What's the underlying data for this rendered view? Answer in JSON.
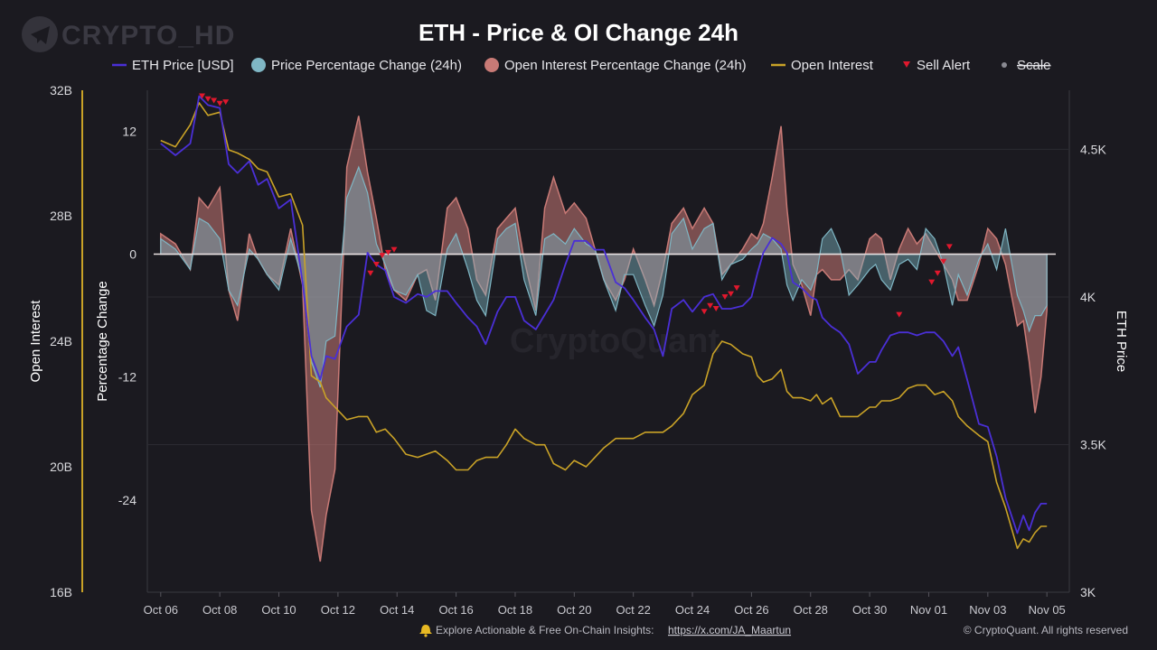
{
  "brand": {
    "watermark": "CRYPTO_HD",
    "center_watermark": "CryptoQuant",
    "copyright": "© CryptoQuant. All rights reserved"
  },
  "footer": {
    "text": "Explore Actionable & Free On-Chain Insights:",
    "link": "https://x.com/JA_Maartun",
    "bell_icon": "bell-icon"
  },
  "colors": {
    "background": "#1b1a20",
    "eth_price": "#4a2fd6",
    "price_change": "#7fb6c4",
    "oi_change": "#c97a76",
    "open_interest": "#c9a227",
    "sell_alert": "#e0182d",
    "grid": "#2b2a31"
  },
  "chart_data": {
    "type": "line",
    "title": "ETH - Price & OI Change 24h",
    "legend": [
      {
        "key": "eth_price",
        "label": "ETH Price [USD]",
        "marker": "line"
      },
      {
        "key": "price_change",
        "label": "Price Percentage Change (24h)",
        "marker": "dot"
      },
      {
        "key": "oi_change",
        "label": "Open Interest Percentage Change (24h)",
        "marker": "dot"
      },
      {
        "key": "open_interest",
        "label": "Open Interest",
        "marker": "line"
      },
      {
        "key": "sell_alert",
        "label": "Sell Alert",
        "marker": "triangle"
      },
      {
        "key": "scale",
        "label": "Scale",
        "marker": "dot",
        "disabled": true
      }
    ],
    "x_ticks": [
      "Oct 06",
      "Oct 08",
      "Oct 10",
      "Oct 12",
      "Oct 14",
      "Oct 16",
      "Oct 18",
      "Oct 20",
      "Oct 22",
      "Oct 24",
      "Oct 26",
      "Oct 28",
      "Oct 30",
      "Nov 01",
      "Nov 03",
      "Nov 05"
    ],
    "x_range_days": [
      -0.3,
      30.3
    ],
    "axes": {
      "open_interest": {
        "title": "Open Interest",
        "range": [
          16,
          32
        ],
        "ticks": [
          "16B",
          "20B",
          "24B",
          "28B",
          "32B"
        ]
      },
      "percentage": {
        "title": "Percentage Change",
        "range": [
          -33,
          16
        ],
        "ticks": [
          "12",
          "0",
          "-12",
          "-24"
        ]
      },
      "eth_price": {
        "title": "ETH Price",
        "range": [
          3000,
          4700
        ],
        "ticks": [
          "3K",
          "3.5K",
          "4K",
          "4.5K"
        ]
      }
    },
    "series": {
      "eth_price": {
        "name": "ETH Price [USD]",
        "unit": "USD",
        "x": [
          0,
          0.5,
          1,
          1.3,
          1.6,
          2,
          2.3,
          2.6,
          3,
          3.3,
          3.6,
          4,
          4.4,
          4.8,
          5.1,
          5.4,
          5.6,
          5.9,
          6.3,
          6.7,
          7,
          7.3,
          7.6,
          7.9,
          8.3,
          8.7,
          9,
          9.3,
          9.7,
          10,
          10.4,
          10.7,
          11,
          11.4,
          11.7,
          12,
          12.3,
          12.7,
          13,
          13.3,
          13.7,
          14,
          14.4,
          14.7,
          15,
          15.4,
          15.7,
          16,
          16.4,
          16.7,
          17,
          17.3,
          17.7,
          18,
          18.4,
          18.7,
          19,
          19.3,
          19.7,
          20,
          20.2,
          20.4,
          20.7,
          21,
          21.2,
          21.4,
          21.7,
          22,
          22.2,
          22.4,
          22.7,
          23,
          23.3,
          23.6,
          24,
          24.2,
          24.4,
          24.7,
          25,
          25.3,
          25.6,
          25.9,
          26.2,
          26.5,
          26.8,
          27,
          27.3,
          27.7,
          28,
          28.3,
          28.6,
          29,
          29.2,
          29.4,
          29.6,
          29.8,
          30
        ],
        "values": [
          4520,
          4480,
          4520,
          4680,
          4650,
          4640,
          4450,
          4420,
          4460,
          4380,
          4400,
          4300,
          4330,
          4050,
          3800,
          3720,
          3800,
          3790,
          3900,
          3940,
          4150,
          4110,
          4090,
          4000,
          3980,
          4010,
          4000,
          4020,
          4020,
          3980,
          3930,
          3900,
          3840,
          3950,
          4000,
          4000,
          3920,
          3890,
          3940,
          3990,
          4110,
          4190,
          4190,
          4160,
          4160,
          4050,
          4030,
          3990,
          3930,
          3890,
          3800,
          3960,
          3990,
          3950,
          4000,
          4010,
          3960,
          3960,
          3970,
          4000,
          4080,
          4150,
          4200,
          4180,
          4150,
          4050,
          4030,
          4000,
          3990,
          3930,
          3900,
          3880,
          3840,
          3740,
          3780,
          3780,
          3820,
          3870,
          3880,
          3880,
          3870,
          3880,
          3880,
          3850,
          3800,
          3830,
          3720,
          3570,
          3560,
          3460,
          3320,
          3200,
          3260,
          3210,
          3270,
          3300,
          3300
        ]
      },
      "open_interest": {
        "name": "Open Interest",
        "unit": "B USD",
        "x": [
          0,
          0.5,
          1,
          1.3,
          1.6,
          2,
          2.3,
          2.6,
          3,
          3.3,
          3.6,
          4,
          4.4,
          4.8,
          5.1,
          5.4,
          5.6,
          5.9,
          6.3,
          6.7,
          7,
          7.3,
          7.6,
          7.9,
          8.3,
          8.7,
          9,
          9.3,
          9.7,
          10,
          10.4,
          10.7,
          11,
          11.4,
          11.7,
          12,
          12.3,
          12.7,
          13,
          13.3,
          13.7,
          14,
          14.4,
          14.7,
          15,
          15.4,
          15.7,
          16,
          16.4,
          16.7,
          17,
          17.3,
          17.7,
          18,
          18.4,
          18.7,
          19,
          19.3,
          19.7,
          20,
          20.2,
          20.4,
          20.7,
          21,
          21.2,
          21.4,
          21.7,
          22,
          22.2,
          22.4,
          22.7,
          23,
          23.3,
          23.6,
          24,
          24.2,
          24.4,
          24.7,
          25,
          25.3,
          25.6,
          25.9,
          26.2,
          26.5,
          26.8,
          27,
          27.3,
          27.7,
          28,
          28.3,
          28.6,
          29,
          29.2,
          29.4,
          29.6,
          29.8,
          30
        ],
        "values": [
          30.4,
          30.2,
          30.9,
          31.6,
          31.2,
          31.3,
          30.1,
          30.0,
          29.8,
          29.5,
          29.4,
          28.6,
          28.7,
          27.7,
          22.9,
          22.7,
          22.2,
          21.9,
          21.5,
          21.6,
          21.6,
          21.1,
          21.2,
          20.9,
          20.4,
          20.3,
          20.4,
          20.5,
          20.2,
          19.9,
          19.9,
          20.2,
          20.3,
          20.3,
          20.7,
          21.2,
          20.9,
          20.7,
          20.7,
          20.1,
          19.9,
          20.2,
          20.0,
          20.3,
          20.6,
          20.9,
          20.9,
          20.9,
          21.1,
          21.1,
          21.1,
          21.3,
          21.7,
          22.3,
          22.6,
          23.6,
          24.0,
          23.9,
          23.6,
          23.5,
          22.9,
          22.7,
          22.8,
          23.1,
          22.4,
          22.2,
          22.2,
          22.1,
          22.3,
          22.0,
          22.2,
          21.6,
          21.6,
          21.6,
          21.9,
          21.9,
          22.1,
          22.1,
          22.2,
          22.5,
          22.6,
          22.6,
          22.3,
          22.4,
          22.1,
          21.6,
          21.3,
          21.0,
          20.8,
          19.5,
          18.7,
          17.4,
          17.7,
          17.6,
          17.9,
          18.1,
          18.1
        ]
      },
      "price_change": {
        "name": "Price Percentage Change (24h)",
        "unit": "%",
        "x": [
          0,
          0.5,
          1,
          1.3,
          1.6,
          2,
          2.3,
          2.6,
          3,
          3.3,
          3.6,
          4,
          4.4,
          4.8,
          5.1,
          5.4,
          5.6,
          5.9,
          6.3,
          6.7,
          7,
          7.3,
          7.6,
          7.9,
          8.3,
          8.7,
          9,
          9.3,
          9.7,
          10,
          10.4,
          10.7,
          11,
          11.4,
          11.7,
          12,
          12.3,
          12.7,
          13,
          13.3,
          13.7,
          14,
          14.4,
          14.7,
          15,
          15.4,
          15.7,
          16,
          16.4,
          16.7,
          17,
          17.3,
          17.7,
          18,
          18.4,
          18.7,
          19,
          19.3,
          19.7,
          20,
          20.2,
          20.4,
          20.7,
          21,
          21.2,
          21.4,
          21.7,
          22,
          22.2,
          22.4,
          22.7,
          23,
          23.3,
          23.6,
          24,
          24.2,
          24.4,
          24.7,
          25,
          25.3,
          25.6,
          25.9,
          26.2,
          26.5,
          26.8,
          27,
          27.3,
          27.7,
          28,
          28.3,
          28.6,
          29,
          29.2,
          29.4,
          29.6,
          29.8,
          30
        ],
        "values": [
          1.5,
          0.5,
          -1.5,
          3.5,
          3.0,
          1.5,
          -3.5,
          -5.0,
          0.5,
          -0.5,
          -2.0,
          -3.5,
          1.5,
          -2.5,
          -10.5,
          -13.0,
          -8.5,
          -8.0,
          5.5,
          8.5,
          6.0,
          1.0,
          -1.0,
          -3.5,
          -4.0,
          -2.0,
          -5.5,
          -6.0,
          0.5,
          2.0,
          -1.5,
          -4.5,
          -6.0,
          1.5,
          2.5,
          3.0,
          -2.5,
          -6.0,
          1.5,
          2.0,
          1.0,
          2.5,
          1.0,
          0.5,
          -2.5,
          -5.5,
          -2.0,
          -2.0,
          -5.0,
          -7.0,
          -4.0,
          2.0,
          3.5,
          0.5,
          2.5,
          3.0,
          -2.5,
          -1.0,
          -0.5,
          0.5,
          1.0,
          2.0,
          1.5,
          0.5,
          -3.0,
          -4.5,
          -2.5,
          -3.5,
          -2.0,
          1.5,
          2.5,
          0.5,
          -4.0,
          -3.0,
          -1.5,
          -1.0,
          -2.5,
          -3.5,
          -1.0,
          -0.5,
          -1.5,
          2.5,
          1.5,
          -1.0,
          -5.0,
          -2.0,
          -4.0,
          -0.5,
          1.0,
          -1.5,
          2.5,
          -4.0,
          -5.5,
          -7.5,
          -6.0,
          -6.0,
          -5.0
        ]
      },
      "oi_change": {
        "name": "Open Interest Percentage Change (24h)",
        "unit": "%",
        "x": [
          0,
          0.5,
          1,
          1.3,
          1.6,
          2,
          2.3,
          2.6,
          3,
          3.3,
          3.6,
          4,
          4.4,
          4.8,
          5.1,
          5.4,
          5.6,
          5.9,
          6.3,
          6.7,
          7,
          7.3,
          7.6,
          7.9,
          8.3,
          8.7,
          9,
          9.3,
          9.7,
          10,
          10.4,
          10.7,
          11,
          11.4,
          11.7,
          12,
          12.3,
          12.7,
          13,
          13.3,
          13.7,
          14,
          14.4,
          14.7,
          15,
          15.4,
          15.7,
          16,
          16.4,
          16.7,
          17,
          17.3,
          17.7,
          18,
          18.4,
          18.7,
          19,
          19.3,
          19.7,
          20,
          20.2,
          20.4,
          20.7,
          21,
          21.2,
          21.4,
          21.7,
          22,
          22.2,
          22.4,
          22.7,
          23,
          23.3,
          23.6,
          24,
          24.2,
          24.4,
          24.7,
          25,
          25.3,
          25.6,
          25.9,
          26.2,
          26.5,
          26.8,
          27,
          27.3,
          27.7,
          28,
          28.3,
          28.6,
          29,
          29.2,
          29.4,
          29.6,
          29.8,
          30
        ],
        "values": [
          2.0,
          1.0,
          -1.5,
          5.5,
          4.5,
          6.5,
          -3.5,
          -6.5,
          2.0,
          -0.5,
          -2.0,
          -3.0,
          2.5,
          -3.0,
          -25.0,
          -30.0,
          -25.5,
          -21.0,
          8.5,
          13.5,
          8.0,
          3.5,
          -1.5,
          -3.5,
          -4.5,
          -2.0,
          -1.5,
          -4.5,
          4.5,
          5.5,
          2.5,
          -2.5,
          -4.0,
          2.5,
          3.5,
          4.5,
          -0.5,
          -5.5,
          4.5,
          7.5,
          4.0,
          5.0,
          3.5,
          0.5,
          -2.5,
          -4.5,
          -2.5,
          0.5,
          -2.5,
          -5.0,
          -1.5,
          3.0,
          4.5,
          2.5,
          4.5,
          3.0,
          -2.0,
          -1.0,
          0.5,
          2.0,
          1.5,
          3.0,
          7.5,
          12.5,
          4.5,
          -1.0,
          -3.0,
          -6.0,
          -2.0,
          -1.5,
          -2.5,
          -2.5,
          -1.5,
          -2.5,
          1.5,
          2.0,
          1.5,
          -2.5,
          0.5,
          2.5,
          1.0,
          2.0,
          0.5,
          -1.0,
          -2.5,
          -4.5,
          -4.5,
          -1.0,
          2.5,
          1.5,
          -1.0,
          -7.0,
          -6.5,
          -10.5,
          -15.5,
          -12.0,
          -5.5
        ]
      },
      "sell_alert": {
        "name": "Sell Alert",
        "unit": "USD",
        "x": [
          1.4,
          1.6,
          1.8,
          2.0,
          2.2,
          7.1,
          7.3,
          7.5,
          7.7,
          7.9,
          18.4,
          18.6,
          18.8,
          19.1,
          19.3,
          19.5,
          25.0,
          26.1,
          26.3,
          26.5,
          26.7
        ],
        "values": [
          4680,
          4670,
          4665,
          4655,
          4660,
          4080,
          4110,
          4140,
          4150,
          4160,
          3950,
          3970,
          3960,
          4000,
          4010,
          4030,
          3940,
          4050,
          4080,
          4120,
          4170
        ]
      }
    }
  }
}
